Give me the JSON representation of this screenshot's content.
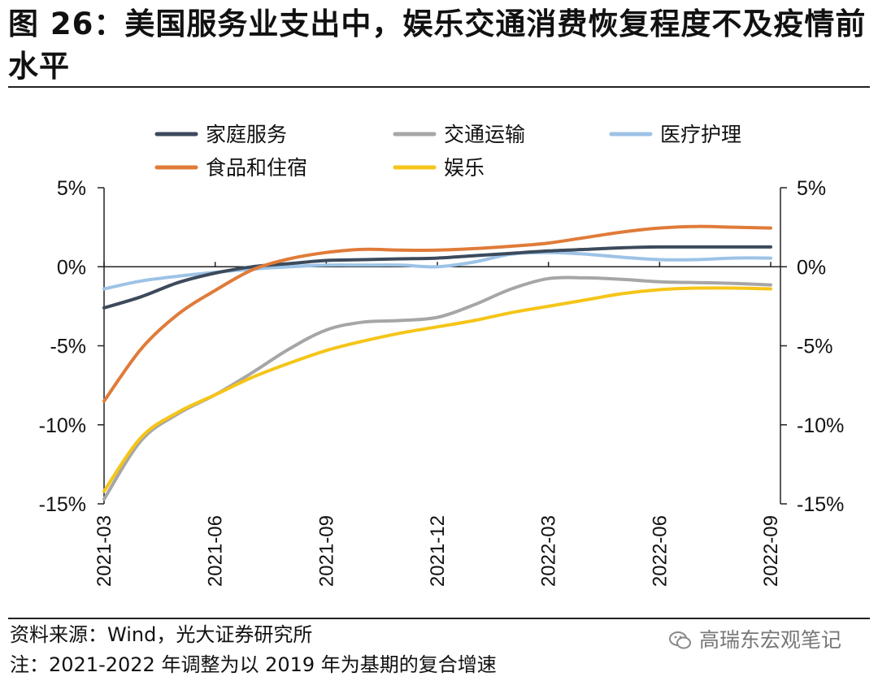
{
  "header": {
    "title": "图 26：美国服务业支出中，娱乐交通消费恢复程度不及疫情前水平"
  },
  "footer": {
    "source": "资料来源：Wind，光大证券研究所",
    "note": "注：2021-2022 年调整为以 2019 年为基期的复合增速",
    "watermark": "高瑞东宏观笔记"
  },
  "chart_data": {
    "type": "line",
    "title": "美国服务业支出中，娱乐交通消费恢复程度不及疫情前水平",
    "unit": "%",
    "x": [
      "2021-03",
      "2021-04",
      "2021-05",
      "2021-06",
      "2021-07",
      "2021-08",
      "2021-09",
      "2021-10",
      "2021-11",
      "2021-12",
      "2022-01",
      "2022-02",
      "2022-03",
      "2022-04",
      "2022-05",
      "2022-06",
      "2022-07",
      "2022-08",
      "2022-09"
    ],
    "x_tick_labels": [
      "2021-03",
      "2021-06",
      "2021-09",
      "2021-12",
      "2022-03",
      "2022-06",
      "2022-09"
    ],
    "ylim": [
      -15,
      5
    ],
    "yticks": [
      5,
      0,
      -5,
      -10,
      -15
    ],
    "ytick_labels": [
      "5%",
      "0%",
      "-5%",
      "-10%",
      "-15%"
    ],
    "secondary_axis_mirrored": true,
    "legend": [
      "家庭服务",
      "交通运输",
      "医疗护理",
      "食品和住宿",
      "娱乐"
    ],
    "series": [
      {
        "name": "家庭服务",
        "color": "#3c4a5c",
        "values": [
          -2.6,
          -1.9,
          -1.0,
          -0.4,
          0.0,
          0.2,
          0.4,
          0.45,
          0.5,
          0.55,
          0.7,
          0.85,
          1.0,
          1.1,
          1.2,
          1.25,
          1.25,
          1.25,
          1.25
        ]
      },
      {
        "name": "交通运输",
        "color": "#a6a6a6",
        "values": [
          -14.7,
          -11.0,
          -9.3,
          -8.1,
          -6.7,
          -5.2,
          -4.0,
          -3.5,
          -3.4,
          -3.2,
          -2.4,
          -1.4,
          -0.75,
          -0.7,
          -0.8,
          -0.95,
          -1.0,
          -1.05,
          -1.15
        ]
      },
      {
        "name": "医疗护理",
        "color": "#9dc3e6",
        "values": [
          -1.4,
          -0.9,
          -0.6,
          -0.35,
          -0.15,
          0.0,
          0.1,
          0.1,
          0.1,
          0.0,
          0.3,
          0.8,
          0.9,
          0.8,
          0.6,
          0.45,
          0.45,
          0.55,
          0.55
        ]
      },
      {
        "name": "食品和住宿",
        "color": "#e07b39",
        "values": [
          -8.5,
          -5.2,
          -3.0,
          -1.5,
          -0.2,
          0.5,
          0.9,
          1.1,
          1.05,
          1.05,
          1.15,
          1.3,
          1.5,
          1.85,
          2.2,
          2.45,
          2.55,
          2.5,
          2.45
        ]
      },
      {
        "name": "娱乐",
        "color": "#f5c518",
        "values": [
          -14.2,
          -10.8,
          -9.2,
          -8.1,
          -7.0,
          -6.1,
          -5.3,
          -4.7,
          -4.2,
          -3.8,
          -3.4,
          -2.9,
          -2.5,
          -2.1,
          -1.7,
          -1.45,
          -1.35,
          -1.35,
          -1.4
        ]
      }
    ]
  }
}
